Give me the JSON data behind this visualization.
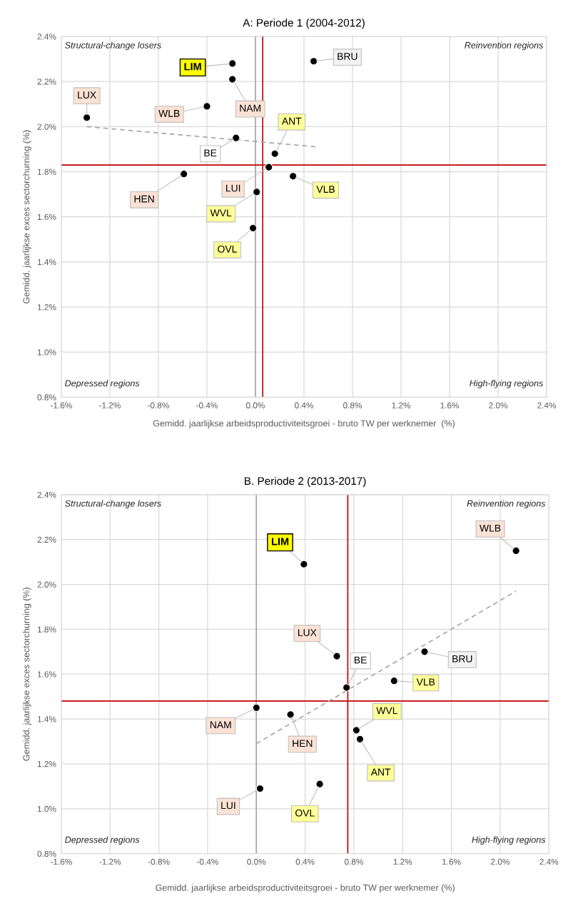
{
  "chart_data": [
    {
      "type": "scatter",
      "title": "A: Periode 1 (2004-2012)",
      "xlabel": "Gemidd. jaarlijkse arbeidsproductiviteitsgroei - bruto TW per werknemer  (%)",
      "ylabel": "Gemidd. jaarlijkse exces sectorchurning (%)",
      "xlim": [
        -1.6,
        2.4
      ],
      "ylim": [
        0.8,
        2.4
      ],
      "xticks": [
        {
          "value": -1.6,
          "label": "-1.6%"
        },
        {
          "value": -1.2,
          "label": "-1.2%"
        },
        {
          "value": -0.8,
          "label": "-0.8%"
        },
        {
          "value": -0.4,
          "label": "-0.4%"
        },
        {
          "value": 0.0,
          "label": "0.0%"
        },
        {
          "value": 0.4,
          "label": "0.4%"
        },
        {
          "value": 0.8,
          "label": "0.8%"
        },
        {
          "value": 1.2,
          "label": "1.2%"
        },
        {
          "value": 1.6,
          "label": "1.6%"
        },
        {
          "value": 2.0,
          "label": "2.0%"
        },
        {
          "value": 2.4,
          "label": "2.4%"
        }
      ],
      "yticks": [
        {
          "value": 0.8,
          "label": "0.8%"
        },
        {
          "value": 1.0,
          "label": "1.0%"
        },
        {
          "value": 1.2,
          "label": "1.2%"
        },
        {
          "value": 1.4,
          "label": "1.4%"
        },
        {
          "value": 1.6,
          "label": "1.6%"
        },
        {
          "value": 1.8,
          "label": "1.8%"
        },
        {
          "value": 2.0,
          "label": "2.0%"
        },
        {
          "value": 2.2,
          "label": "2.2%"
        },
        {
          "value": 2.4,
          "label": "2.4%"
        }
      ],
      "grid": true,
      "legend": false,
      "marker": "circle",
      "series": [
        {
          "name": "LIM",
          "color": "#000000",
          "x": [
            -0.19
          ],
          "values": [
            2.28
          ]
        },
        {
          "name": "BRU",
          "color": "#000000",
          "x": [
            0.48
          ],
          "values": [
            2.29
          ]
        },
        {
          "name": "NAM",
          "color": "#000000",
          "x": [
            -0.19
          ],
          "values": [
            2.21
          ]
        },
        {
          "name": "LUX",
          "color": "#000000",
          "x": [
            -1.39
          ],
          "values": [
            2.04
          ]
        },
        {
          "name": "WLB",
          "color": "#000000",
          "x": [
            -0.4
          ],
          "values": [
            2.09
          ]
        },
        {
          "name": "BE",
          "color": "#000000",
          "x": [
            -0.16
          ],
          "values": [
            1.95
          ]
        },
        {
          "name": "ANT",
          "color": "#000000",
          "x": [
            0.16
          ],
          "values": [
            1.88
          ]
        },
        {
          "name": "LUI",
          "color": "#000000",
          "x": [
            0.11
          ],
          "values": [
            1.82
          ]
        },
        {
          "name": "HEN",
          "color": "#000000",
          "x": [
            -0.59
          ],
          "values": [
            1.79
          ]
        },
        {
          "name": "VLB",
          "color": "#000000",
          "x": [
            0.31
          ],
          "values": [
            1.78
          ]
        },
        {
          "name": "WVL",
          "color": "#000000",
          "x": [
            0.01
          ],
          "values": [
            1.71
          ]
        },
        {
          "name": "OVL",
          "color": "#000000",
          "x": [
            -0.02
          ],
          "values": [
            1.55
          ]
        },
        {
          "type": "line",
          "marker": "none",
          "color": "#a6a6a6",
          "line_style": "dashed",
          "x": [
            -1.39,
            0.51
          ],
          "values": [
            2.0,
            1.91
          ]
        }
      ],
      "ref_lines": [
        {
          "axis": "x",
          "value": 0.0,
          "color": "#a6a6a6"
        },
        {
          "axis": "x",
          "value": 0.06,
          "color": "#c00000"
        },
        {
          "axis": "y",
          "value": 1.83,
          "color": "#c00000"
        }
      ],
      "annotations": [
        "Structural-change losers",
        "Reinvention regions",
        "Depressed regions",
        "High-flying regions"
      ]
    },
    {
      "type": "scatter",
      "title": "B. Periode 2 (2013-2017)",
      "xlabel": "Gemidd. jaarlijkse arbeidsproductiviteitsgroei - bruto TW per werknemer (%)",
      "ylabel": "Gemidd. jaarlijkse exces sectorchurning (%)",
      "xlim": [
        -1.6,
        2.4
      ],
      "ylim": [
        0.8,
        2.4
      ],
      "xticks": [
        {
          "value": -1.6,
          "label": "-1.6%"
        },
        {
          "value": -1.2,
          "label": "-1.2%"
        },
        {
          "value": -0.8,
          "label": "-0.8%"
        },
        {
          "value": -0.4,
          "label": "-0.4%"
        },
        {
          "value": 0.0,
          "label": "0.0%"
        },
        {
          "value": 0.4,
          "label": "0.4%"
        },
        {
          "value": 0.8,
          "label": "0.8%"
        },
        {
          "value": 1.2,
          "label": "1.2%"
        },
        {
          "value": 1.6,
          "label": "1.6%"
        },
        {
          "value": 2.0,
          "label": "2.0%"
        },
        {
          "value": 2.4,
          "label": "2.4%"
        }
      ],
      "yticks": [
        {
          "value": 0.8,
          "label": "0.8%"
        },
        {
          "value": 1.0,
          "label": "1.0%"
        },
        {
          "value": 1.2,
          "label": "1.2%"
        },
        {
          "value": 1.4,
          "label": "1.4%"
        },
        {
          "value": 1.6,
          "label": "1.6%"
        },
        {
          "value": 1.8,
          "label": "1.8%"
        },
        {
          "value": 2.0,
          "label": "2.0%"
        },
        {
          "value": 2.2,
          "label": "2.2%"
        },
        {
          "value": 2.4,
          "label": "2.4%"
        }
      ],
      "grid": true,
      "legend": false,
      "marker": "circle",
      "series": [
        {
          "name": "LIM",
          "color": "#000000",
          "x": [
            0.39
          ],
          "values": [
            2.09
          ]
        },
        {
          "name": "WLB",
          "color": "#000000",
          "x": [
            2.13
          ],
          "values": [
            2.15
          ]
        },
        {
          "name": "LUX",
          "color": "#000000",
          "x": [
            0.66
          ],
          "values": [
            1.68
          ]
        },
        {
          "name": "BRU",
          "color": "#000000",
          "x": [
            1.38
          ],
          "values": [
            1.7
          ]
        },
        {
          "name": "BE",
          "color": "#000000",
          "x": [
            0.74
          ],
          "values": [
            1.54
          ]
        },
        {
          "name": "VLB",
          "color": "#000000",
          "x": [
            1.13
          ],
          "values": [
            1.57
          ]
        },
        {
          "name": "NAM",
          "color": "#000000",
          "x": [
            0.0
          ],
          "values": [
            1.45
          ]
        },
        {
          "name": "HEN",
          "color": "#000000",
          "x": [
            0.28
          ],
          "values": [
            1.42
          ]
        },
        {
          "name": "WVL",
          "color": "#000000",
          "x": [
            0.82
          ],
          "values": [
            1.35
          ]
        },
        {
          "name": "ANT",
          "color": "#000000",
          "x": [
            0.85
          ],
          "values": [
            1.31
          ]
        },
        {
          "name": "LUI",
          "color": "#000000",
          "x": [
            0.03
          ],
          "values": [
            1.09
          ]
        },
        {
          "name": "OVL",
          "color": "#000000",
          "x": [
            0.52
          ],
          "values": [
            1.11
          ]
        },
        {
          "type": "line",
          "marker": "none",
          "color": "#a6a6a6",
          "line_style": "dashed",
          "x": [
            0.0,
            2.13
          ],
          "values": [
            1.29,
            1.97
          ]
        }
      ],
      "ref_lines": [
        {
          "axis": "x",
          "value": 0.0,
          "color": "#a6a6a6"
        },
        {
          "axis": "x",
          "value": 0.75,
          "color": "#c00000"
        },
        {
          "axis": "y",
          "value": 1.48,
          "color": "#c00000"
        }
      ],
      "annotations": [
        "Structural-change losers",
        "Reinvention regions",
        "Depressed regions",
        "High-flying regions"
      ]
    }
  ]
}
